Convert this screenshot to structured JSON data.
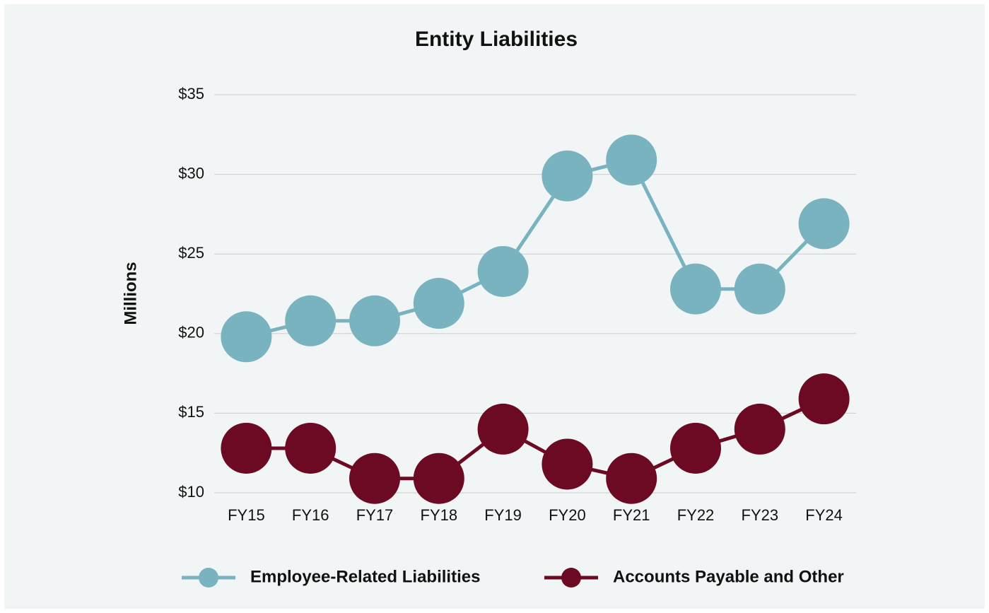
{
  "chart_data": {
    "type": "line",
    "title": "Entity Liabilities",
    "y_label": "Millions",
    "categories": [
      "FY15",
      "FY16",
      "FY17",
      "FY18",
      "FY19",
      "FY20",
      "FY21",
      "FY22",
      "FY23",
      "FY24"
    ],
    "series": [
      {
        "name": "Employee-Related Liabilities",
        "color": "#7ab3c0",
        "values": [
          19.8,
          20.8,
          20.8,
          21.9,
          23.9,
          29.9,
          30.9,
          22.8,
          22.8,
          26.9
        ]
      },
      {
        "name": "Accounts Payable and Other",
        "color": "#6b0a22",
        "values": [
          12.8,
          12.8,
          10.9,
          10.9,
          14.0,
          11.8,
          10.9,
          12.8,
          14.0,
          15.9
        ]
      }
    ],
    "ylim": [
      10,
      35
    ],
    "yticks": [
      {
        "value": 10,
        "label": "$10"
      },
      {
        "value": 15,
        "label": "$15"
      },
      {
        "value": 20,
        "label": "$20"
      },
      {
        "value": 25,
        "label": "$25"
      },
      {
        "value": 30,
        "label": "$30"
      },
      {
        "value": 35,
        "label": "$35"
      }
    ],
    "grid": true,
    "legend": "bottom"
  }
}
